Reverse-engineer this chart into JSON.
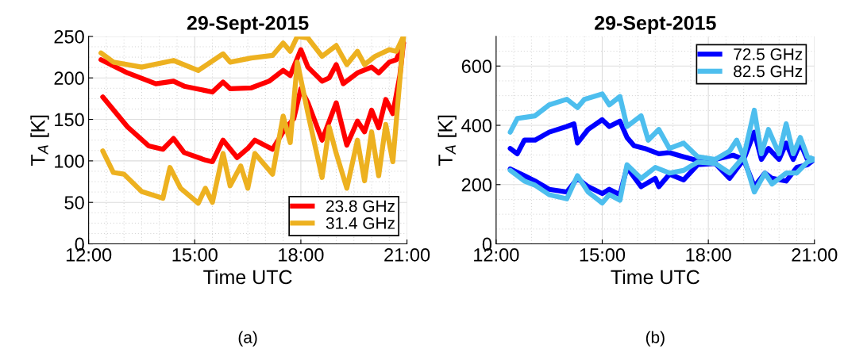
{
  "chart_data": [
    {
      "type": "line",
      "title": "29-Sept-2015",
      "xlabel": "Time UTC",
      "ylabel": "T$_{A}$ [K]",
      "annotations": [
        "(a)"
      ],
      "xlim": [
        12,
        21
      ],
      "ylim": [
        0,
        250
      ],
      "xticks": [
        {
          "value": 12,
          "label": "12:00"
        },
        {
          "value": 15,
          "label": "15:00"
        },
        {
          "value": 18,
          "label": "18:00"
        },
        {
          "value": 21,
          "label": "21:00"
        }
      ],
      "yticks": [
        0,
        50,
        100,
        150,
        200,
        250
      ],
      "grid": true,
      "legend": "bottom right",
      "series": [
        {
          "name": "23.8 GHz",
          "color": "#ff0000",
          "x": [
            12.35,
            13.1,
            13.9,
            14.4,
            14.7,
            15.5,
            15.8,
            16.0,
            16.6,
            17.1,
            17.5,
            17.7,
            18.0,
            18.2,
            18.6,
            18.8,
            19.0,
            19.2,
            19.6,
            20.0,
            20.2,
            20.5,
            20.7,
            20.9
          ],
          "values": [
            222,
            206,
            193,
            196,
            190,
            183,
            195,
            187,
            188,
            196,
            209,
            203,
            234,
            213,
            196,
            200,
            216,
            193,
            206,
            213,
            206,
            219,
            222,
            242
          ]
        },
        {
          "color": "#ff0000",
          "x": [
            12.4,
            13.1,
            13.7,
            14.1,
            14.4,
            14.7,
            15.3,
            15.5,
            15.8,
            16.2,
            16.5,
            16.7,
            17.2,
            17.5,
            17.8,
            18.0,
            18.2,
            18.6,
            19.0,
            19.3,
            19.6,
            19.8,
            20.0,
            20.2,
            20.4,
            20.6,
            20.8,
            20.9
          ],
          "values": [
            177,
            141,
            118,
            114,
            127,
            110,
            101,
            99,
            125,
            104,
            115,
            125,
            114,
            135,
            151,
            187,
            170,
            125,
            170,
            119,
            148,
            135,
            161,
            140,
            174,
            157,
            203,
            242
          ]
        },
        {
          "name": "31.4 GHz",
          "color": "#edb120",
          "x": [
            12.35,
            12.7,
            13.5,
            14.4,
            15.1,
            15.8,
            16.0,
            16.6,
            17.2,
            17.5,
            17.7,
            17.9,
            18.2,
            18.6,
            19.0,
            19.3,
            19.6,
            19.8,
            20.1,
            20.5,
            20.7,
            20.9
          ],
          "values": [
            230,
            219,
            213,
            221,
            209,
            229,
            219,
            224,
            227,
            242,
            232,
            250,
            248,
            226,
            239,
            216,
            232,
            216,
            226,
            234,
            232,
            250
          ]
        },
        {
          "color": "#edb120",
          "x": [
            12.4,
            12.7,
            13.0,
            13.5,
            14.1,
            14.3,
            14.6,
            15.1,
            15.3,
            15.5,
            15.8,
            16.0,
            16.3,
            16.5,
            16.7,
            17.2,
            17.5,
            17.7,
            17.9,
            18.2,
            18.6,
            18.8,
            19.0,
            19.3,
            19.6,
            19.8,
            20.0,
            20.2,
            20.4,
            20.6,
            20.9
          ],
          "values": [
            112,
            86,
            84,
            63,
            55,
            92,
            67,
            49,
            67,
            50,
            109,
            70,
            94,
            67,
            109,
            84,
            154,
            122,
            219,
            157,
            80,
            141,
            109,
            67,
            125,
            76,
            135,
            82,
            144,
            99,
            248
          ]
        }
      ]
    },
    {
      "type": "line",
      "title": "29-Sept-2015",
      "xlabel": "Time UTC",
      "ylabel": "T$_{A}$ [K]",
      "annotations": [
        "(b)"
      ],
      "xlim": [
        12,
        21
      ],
      "ylim": [
        0,
        700
      ],
      "xticks": [
        {
          "value": 12,
          "label": "12:00"
        },
        {
          "value": 15,
          "label": "15:00"
        },
        {
          "value": 18,
          "label": "18:00"
        },
        {
          "value": 21,
          "label": "21:00"
        }
      ],
      "yticks": [
        0,
        200,
        400,
        600
      ],
      "grid": true,
      "legend": "top right",
      "series": [
        {
          "name": "72.5 GHz",
          "color": "#0000ff",
          "x": [
            12.4,
            12.6,
            12.8,
            13.1,
            13.5,
            14.0,
            14.2,
            14.3,
            14.6,
            15.0,
            15.2,
            15.5,
            15.7,
            15.9,
            16.2,
            16.6,
            16.9,
            17.3,
            17.7,
            18.2,
            18.7,
            19.0,
            19.3,
            19.5,
            19.7,
            20.0,
            20.2,
            20.4,
            20.6,
            20.8,
            21.0
          ],
          "values": [
            322,
            304,
            350,
            350,
            377,
            396,
            405,
            340,
            386,
            419,
            396,
            414,
            359,
            331,
            322,
            304,
            308,
            294,
            281,
            285,
            299,
            285,
            377,
            285,
            322,
            285,
            340,
            285,
            340,
            285,
            285
          ]
        },
        {
          "color": "#0000ff",
          "x": [
            12.4,
            12.8,
            13.1,
            13.5,
            14.0,
            14.3,
            14.6,
            15.0,
            15.2,
            15.5,
            15.7,
            16.1,
            16.5,
            16.6,
            16.9,
            17.3,
            17.7,
            18.2,
            18.6,
            19.0,
            19.3,
            19.6,
            19.8,
            20.2,
            20.5,
            20.8,
            21.0
          ],
          "values": [
            253,
            230,
            212,
            184,
            175,
            221,
            193,
            170,
            184,
            166,
            258,
            193,
            221,
            193,
            235,
            216,
            267,
            271,
            221,
            285,
            193,
            239,
            221,
            212,
            258,
            267,
            285
          ]
        },
        {
          "name": "82.5 GHz",
          "color": "#4dbeee",
          "x": [
            12.4,
            12.6,
            13.1,
            13.5,
            14.0,
            14.3,
            14.5,
            15.0,
            15.2,
            15.5,
            15.7,
            16.1,
            16.3,
            16.6,
            16.9,
            17.3,
            17.7,
            18.2,
            18.6,
            18.8,
            19.0,
            19.3,
            19.5,
            19.7,
            20.0,
            20.2,
            20.4,
            20.6,
            20.8,
            21.0
          ],
          "values": [
            377,
            423,
            432,
            469,
            488,
            460,
            488,
            506,
            469,
            497,
            396,
            432,
            350,
            386,
            322,
            340,
            294,
            285,
            313,
            350,
            294,
            451,
            304,
            386,
            304,
            405,
            304,
            359,
            294,
            285
          ]
        },
        {
          "color": "#4dbeee",
          "x": [
            12.4,
            12.8,
            13.1,
            13.5,
            14.0,
            14.3,
            14.6,
            15.0,
            15.2,
            15.5,
            15.7,
            16.1,
            16.5,
            16.9,
            17.3,
            17.7,
            18.2,
            18.6,
            19.0,
            19.3,
            19.6,
            19.8,
            20.2,
            20.5,
            20.8,
            21.0
          ],
          "values": [
            248,
            212,
            198,
            166,
            152,
            230,
            175,
            138,
            166,
            147,
            267,
            221,
            258,
            239,
            248,
            276,
            271,
            239,
            294,
            175,
            239,
            202,
            239,
            239,
            276,
            285
          ]
        }
      ]
    }
  ]
}
